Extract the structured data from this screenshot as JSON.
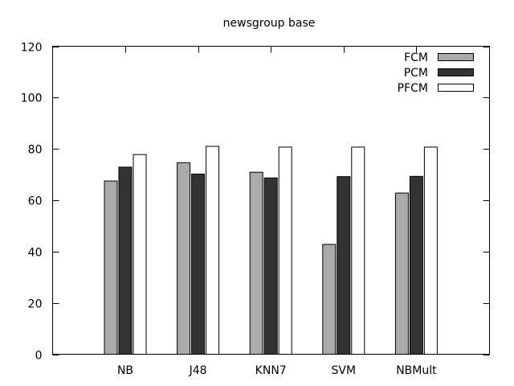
{
  "chart_data": {
    "type": "bar",
    "title": "newsgroup base",
    "xlabel": "",
    "ylabel": "",
    "categories": [
      "NB",
      "J48",
      "KNN7",
      "SVM",
      "NBMult"
    ],
    "series": [
      {
        "name": "FCM",
        "values": [
          67.5,
          74.6,
          70.9,
          42.8,
          62.8
        ],
        "color": "#aaaaaa"
      },
      {
        "name": "PCM",
        "values": [
          72.9,
          70.2,
          68.7,
          69.2,
          69.3
        ],
        "color": "#333333"
      },
      {
        "name": "PFCM",
        "values": [
          77.8,
          81.0,
          80.7,
          80.7,
          80.7
        ],
        "color": "#ffffff"
      }
    ],
    "ylim": [
      0,
      120
    ],
    "yticks": [
      "0",
      "20",
      "40",
      "60",
      "80",
      "100",
      "120"
    ],
    "grid": false,
    "legend_position": "top-right"
  }
}
